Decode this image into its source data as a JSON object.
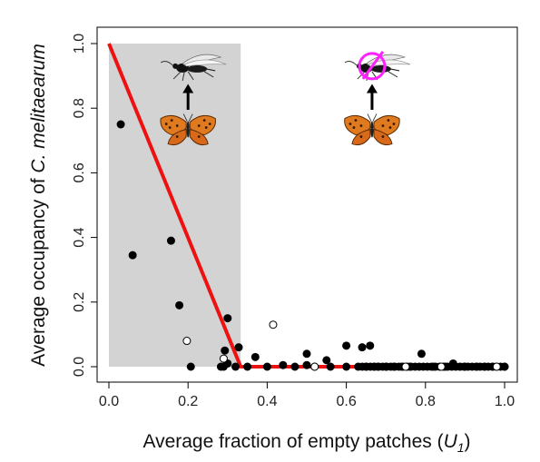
{
  "chart_data": {
    "type": "scatter",
    "title": "",
    "xlabel": {
      "prefix": "Average fraction of empty patches (",
      "var": "U",
      "sub": "1",
      "suffix": ")"
    },
    "ylabel": {
      "prefix": "Average occupancy of ",
      "species": "C. melitaearum"
    },
    "xlim": [
      0.0,
      1.0
    ],
    "ylim": [
      0.0,
      1.0
    ],
    "xticks": [
      "0.0",
      "0.2",
      "0.4",
      "0.6",
      "0.8",
      "1.0"
    ],
    "yticks": [
      "0.0",
      "0.2",
      "0.4",
      "0.6",
      "0.8",
      "1.0"
    ],
    "shaded_region": {
      "x": [
        0.0,
        0.333
      ],
      "y": [
        0.0,
        1.0
      ],
      "color": "#d3d3d3"
    },
    "threshold_line": {
      "color": "#ee1111",
      "points": [
        [
          0.0,
          1.0
        ],
        [
          0.333,
          0.0
        ],
        [
          1.0,
          0.0
        ]
      ]
    },
    "series": [
      {
        "style": "filled",
        "color": "#000000",
        "points": [
          [
            0.03,
            0.75
          ],
          [
            0.06,
            0.345
          ],
          [
            0.157,
            0.39
          ],
          [
            0.178,
            0.19
          ],
          [
            0.207,
            0.0
          ],
          [
            0.283,
            0.0
          ],
          [
            0.29,
            0.0
          ],
          [
            0.293,
            0.05
          ],
          [
            0.3,
            0.15
          ],
          [
            0.3,
            0.01
          ],
          [
            0.32,
            0.0
          ],
          [
            0.328,
            0.06
          ],
          [
            0.35,
            0.0
          ],
          [
            0.37,
            0.03
          ],
          [
            0.4,
            0.0
          ],
          [
            0.44,
            0.005
          ],
          [
            0.47,
            0.0
          ],
          [
            0.5,
            0.04
          ],
          [
            0.5,
            0.005
          ],
          [
            0.52,
            0.0
          ],
          [
            0.55,
            0.02
          ],
          [
            0.56,
            0.0
          ],
          [
            0.6,
            0.065
          ],
          [
            0.6,
            0.0
          ],
          [
            0.64,
            0.06
          ],
          [
            0.65,
            0.0
          ],
          [
            0.66,
            0.065
          ],
          [
            0.67,
            0.0
          ],
          [
            0.68,
            0.0
          ],
          [
            0.7,
            0.0
          ],
          [
            0.72,
            0.0
          ],
          [
            0.74,
            0.0
          ],
          [
            0.76,
            0.0
          ],
          [
            0.79,
            0.04
          ],
          [
            0.82,
            0.0
          ],
          [
            0.85,
            0.0
          ],
          [
            0.87,
            0.01
          ],
          [
            0.9,
            0.0
          ],
          [
            0.93,
            0.0
          ],
          [
            0.95,
            0.0
          ],
          [
            0.97,
            0.0
          ],
          [
            1.0,
            0.0
          ]
        ]
      },
      {
        "style": "open",
        "color": "#000000",
        "points": [
          [
            0.197,
            0.08
          ],
          [
            0.29,
            0.025
          ],
          [
            0.415,
            0.13
          ],
          [
            0.52,
            0.0
          ],
          [
            0.75,
            0.0
          ],
          [
            0.84,
            0.0
          ],
          [
            0.98,
            0.0
          ]
        ]
      }
    ],
    "jitter_strip": [
      0.63,
      1.0,
      0.0
    ],
    "annotations": [
      {
        "type": "image",
        "icon": "parasitoid-wasp-icon",
        "x": 0.2,
        "y": 0.93,
        "crossed": false
      },
      {
        "type": "image",
        "icon": "butterfly-icon",
        "x": 0.2,
        "y": 0.74
      },
      {
        "type": "image",
        "icon": "parasitoid-wasp-icon",
        "x": 0.665,
        "y": 0.93,
        "crossed": true,
        "cross_color": "#ff22ff"
      },
      {
        "type": "image",
        "icon": "butterfly-icon",
        "x": 0.665,
        "y": 0.74
      }
    ]
  }
}
